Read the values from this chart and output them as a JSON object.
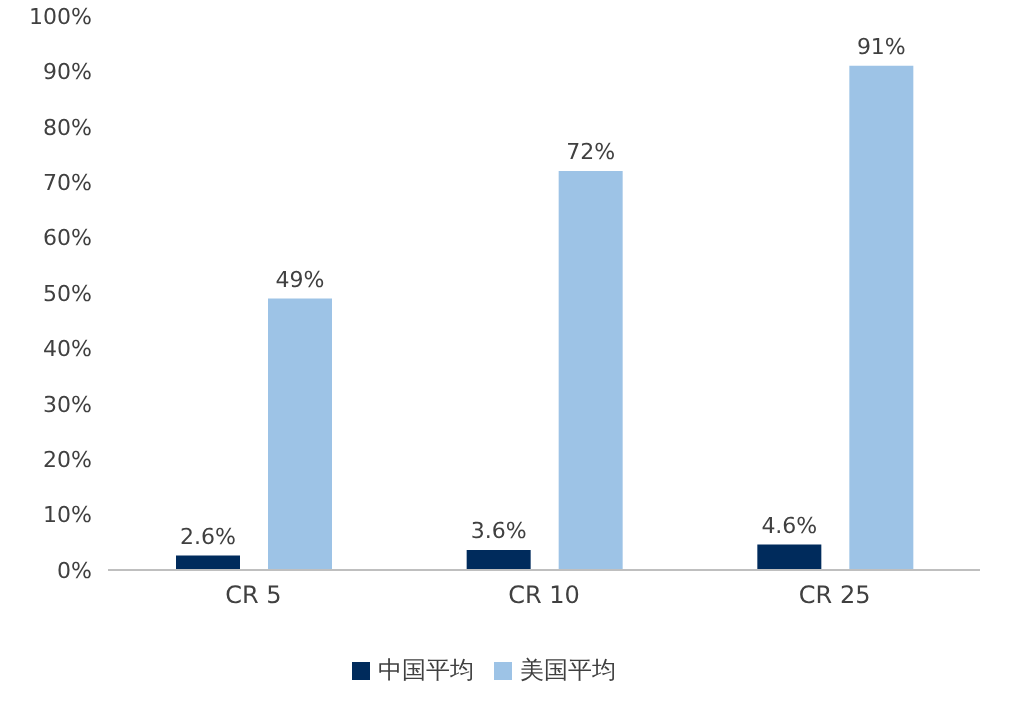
{
  "chart_data": {
    "type": "bar",
    "categories": [
      "CR 5",
      "CR 10",
      "CR 25"
    ],
    "series": [
      {
        "name": "中国平均",
        "color": "#002b5c",
        "values": [
          2.6,
          3.6,
          4.6
        ],
        "value_labels": [
          "2.6%",
          "3.6%",
          "4.6%"
        ]
      },
      {
        "name": "美国平均",
        "color": "#9dc3e6",
        "values": [
          49,
          72,
          91
        ],
        "value_labels": [
          "49%",
          "72%",
          "91%"
        ]
      }
    ],
    "ylim": [
      0,
      100
    ],
    "yticks": [
      {
        "value": 0,
        "label": "0%"
      },
      {
        "value": 10,
        "label": "10%"
      },
      {
        "value": 20,
        "label": "20%"
      },
      {
        "value": 30,
        "label": "30%"
      },
      {
        "value": 40,
        "label": "40%"
      },
      {
        "value": 50,
        "label": "50%"
      },
      {
        "value": 60,
        "label": "60%"
      },
      {
        "value": 70,
        "label": "70%"
      },
      {
        "value": 80,
        "label": "80%"
      },
      {
        "value": 90,
        "label": "90%"
      },
      {
        "value": 100,
        "label": "100%"
      }
    ],
    "grid": false,
    "legend": "bottom"
  }
}
